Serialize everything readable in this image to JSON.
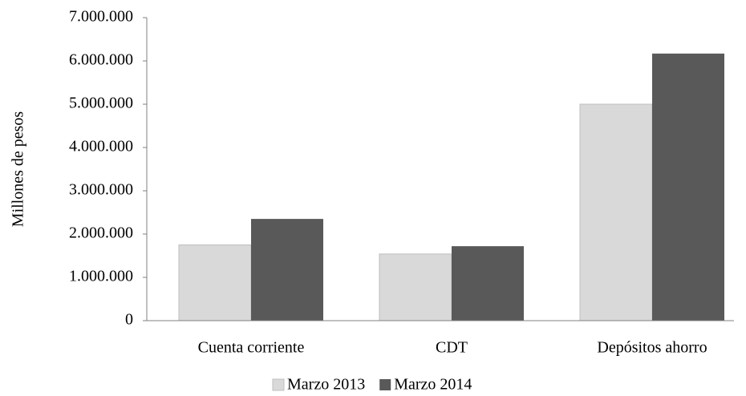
{
  "chart_data": {
    "type": "bar",
    "y_label": "Millones  de pesos",
    "categories": [
      "Cuenta corriente",
      "CDT",
      "Depósitos ahorro"
    ],
    "series": [
      {
        "name": "Marzo 2013",
        "color": "#d9d9d9",
        "values": [
          1750000,
          1540000,
          5000000
        ]
      },
      {
        "name": "Marzo 2014",
        "color": "#595959",
        "values": [
          2350000,
          1720000,
          6170000
        ]
      }
    ],
    "ylim": [
      0,
      7000000
    ],
    "yticks": [
      0,
      {
        "value": 1000000,
        "label": "1.000.000"
      },
      {
        "value": 2000000,
        "label": "2.000.000"
      },
      {
        "value": 3000000,
        "label": "3.000.000"
      },
      {
        "value": 4000000,
        "label": "4.000.000"
      },
      {
        "value": 5000000,
        "label": "5.000.000"
      },
      {
        "value": 6000000,
        "label": "6.000.000"
      },
      {
        "value": 7000000,
        "label": "7.000.000"
      }
    ],
    "legend": "bottom"
  }
}
